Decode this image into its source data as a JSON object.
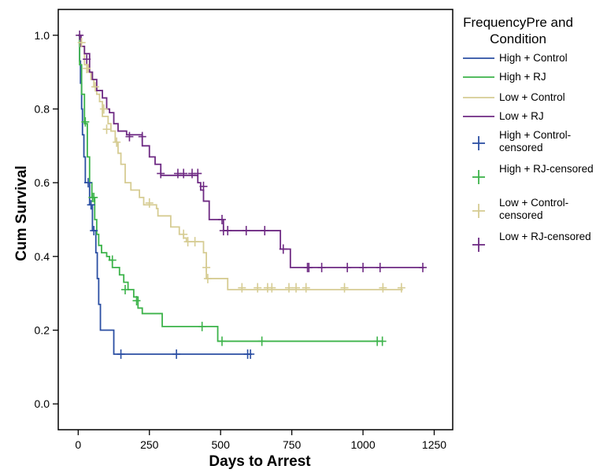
{
  "chart_data": {
    "type": "line",
    "step": true,
    "xlabel": "Days to Arrest",
    "ylabel": "Cum Survival",
    "xlim": [
      -70,
      1315
    ],
    "ylim": [
      -0.07,
      1.07
    ],
    "x_ticks": [
      0,
      250,
      500,
      750,
      1000,
      1250
    ],
    "x_tick_labels": [
      "0",
      "250",
      "500",
      "750",
      "1000",
      "1250"
    ],
    "y_ticks": [
      0.0,
      0.2,
      0.4,
      0.6,
      0.8,
      1.0
    ],
    "y_tick_labels": [
      "0.0",
      "0.2",
      "0.4",
      "0.6",
      "0.8",
      "1.0"
    ],
    "grid": false,
    "legend_title": "FrequencyPre and Condition",
    "legend_position": "right",
    "series": [
      {
        "name": "High + Control",
        "censored_name": "High + Control-censored",
        "color": "#2b4fa3",
        "points": [
          [
            0,
            1.0
          ],
          [
            5,
            0.93
          ],
          [
            8,
            0.87
          ],
          [
            12,
            0.8
          ],
          [
            15,
            0.73
          ],
          [
            20,
            0.67
          ],
          [
            25,
            0.6
          ],
          [
            40,
            0.54
          ],
          [
            50,
            0.47
          ],
          [
            62,
            0.41
          ],
          [
            67,
            0.34
          ],
          [
            72,
            0.27
          ],
          [
            78,
            0.2
          ],
          [
            87,
            0.2
          ],
          [
            125,
            0.135
          ],
          [
            610,
            0.135
          ]
        ],
        "censored": [
          [
            35,
            0.6
          ],
          [
            45,
            0.54
          ],
          [
            55,
            0.47
          ],
          [
            150,
            0.135
          ],
          [
            345,
            0.135
          ],
          [
            595,
            0.135
          ],
          [
            605,
            0.135
          ]
        ]
      },
      {
        "name": "High + RJ",
        "censored_name": "High + RJ-censored",
        "color": "#3cb34a",
        "points": [
          [
            0,
            1.0
          ],
          [
            5,
            0.92
          ],
          [
            12,
            0.84
          ],
          [
            22,
            0.76
          ],
          [
            32,
            0.67
          ],
          [
            40,
            0.6
          ],
          [
            48,
            0.56
          ],
          [
            58,
            0.5
          ],
          [
            65,
            0.46
          ],
          [
            72,
            0.43
          ],
          [
            82,
            0.41
          ],
          [
            100,
            0.4
          ],
          [
            110,
            0.39
          ],
          [
            120,
            0.37
          ],
          [
            145,
            0.35
          ],
          [
            160,
            0.33
          ],
          [
            175,
            0.31
          ],
          [
            195,
            0.29
          ],
          [
            210,
            0.26
          ],
          [
            225,
            0.245
          ],
          [
            295,
            0.21
          ],
          [
            490,
            0.17
          ],
          [
            1070,
            0.17
          ]
        ],
        "censored": [
          [
            25,
            0.765
          ],
          [
            50,
            0.56
          ],
          [
            55,
            0.56
          ],
          [
            120,
            0.39
          ],
          [
            165,
            0.31
          ],
          [
            205,
            0.28
          ],
          [
            435,
            0.21
          ],
          [
            505,
            0.17
          ],
          [
            645,
            0.17
          ],
          [
            1050,
            0.17
          ],
          [
            1068,
            0.17
          ]
        ]
      },
      {
        "name": "Low + Control",
        "censored_name": "Low + Control-censored",
        "color": "#d6cc93",
        "points": [
          [
            0,
            1.0
          ],
          [
            8,
            0.97
          ],
          [
            22,
            0.92
          ],
          [
            35,
            0.9
          ],
          [
            45,
            0.88
          ],
          [
            55,
            0.86
          ],
          [
            65,
            0.84
          ],
          [
            75,
            0.82
          ],
          [
            85,
            0.78
          ],
          [
            105,
            0.76
          ],
          [
            115,
            0.74
          ],
          [
            130,
            0.71
          ],
          [
            140,
            0.68
          ],
          [
            150,
            0.65
          ],
          [
            165,
            0.6
          ],
          [
            185,
            0.58
          ],
          [
            215,
            0.56
          ],
          [
            230,
            0.54
          ],
          [
            275,
            0.53
          ],
          [
            280,
            0.51
          ],
          [
            325,
            0.48
          ],
          [
            355,
            0.46
          ],
          [
            370,
            0.45
          ],
          [
            380,
            0.44
          ],
          [
            430,
            0.44
          ],
          [
            440,
            0.41
          ],
          [
            450,
            0.34
          ],
          [
            525,
            0.31
          ],
          [
            1140,
            0.31
          ]
        ],
        "censored": [
          [
            12,
            0.98
          ],
          [
            30,
            0.91
          ],
          [
            60,
            0.86
          ],
          [
            90,
            0.8
          ],
          [
            100,
            0.745
          ],
          [
            135,
            0.71
          ],
          [
            250,
            0.545
          ],
          [
            370,
            0.46
          ],
          [
            385,
            0.44
          ],
          [
            410,
            0.44
          ],
          [
            450,
            0.37
          ],
          [
            455,
            0.34
          ],
          [
            575,
            0.315
          ],
          [
            630,
            0.315
          ],
          [
            665,
            0.315
          ],
          [
            680,
            0.315
          ],
          [
            740,
            0.315
          ],
          [
            765,
            0.315
          ],
          [
            800,
            0.315
          ],
          [
            935,
            0.315
          ],
          [
            1070,
            0.315
          ],
          [
            1135,
            0.315
          ]
        ]
      },
      {
        "name": "Low + RJ",
        "censored_name": "Low + RJ-censored",
        "color": "#6e2a83",
        "points": [
          [
            0,
            1.0
          ],
          [
            10,
            0.97
          ],
          [
            22,
            0.95
          ],
          [
            40,
            0.9
          ],
          [
            50,
            0.88
          ],
          [
            65,
            0.85
          ],
          [
            85,
            0.83
          ],
          [
            100,
            0.8
          ],
          [
            110,
            0.79
          ],
          [
            125,
            0.76
          ],
          [
            140,
            0.74
          ],
          [
            170,
            0.73
          ],
          [
            225,
            0.7
          ],
          [
            250,
            0.67
          ],
          [
            270,
            0.65
          ],
          [
            290,
            0.62
          ],
          [
            420,
            0.6
          ],
          [
            430,
            0.58
          ],
          [
            440,
            0.55
          ],
          [
            460,
            0.5
          ],
          [
            510,
            0.47
          ],
          [
            710,
            0.42
          ],
          [
            745,
            0.37
          ],
          [
            1215,
            0.37
          ]
        ],
        "censored": [
          [
            5,
            1.0
          ],
          [
            30,
            0.935
          ],
          [
            180,
            0.725
          ],
          [
            225,
            0.725
          ],
          [
            290,
            0.625
          ],
          [
            350,
            0.625
          ],
          [
            370,
            0.625
          ],
          [
            400,
            0.625
          ],
          [
            420,
            0.625
          ],
          [
            440,
            0.59
          ],
          [
            505,
            0.5
          ],
          [
            510,
            0.47
          ],
          [
            525,
            0.47
          ],
          [
            590,
            0.47
          ],
          [
            655,
            0.47
          ],
          [
            720,
            0.42
          ],
          [
            805,
            0.37
          ],
          [
            810,
            0.37
          ],
          [
            855,
            0.37
          ],
          [
            945,
            0.37
          ],
          [
            1000,
            0.37
          ],
          [
            1060,
            0.37
          ],
          [
            1210,
            0.37
          ]
        ]
      }
    ]
  }
}
